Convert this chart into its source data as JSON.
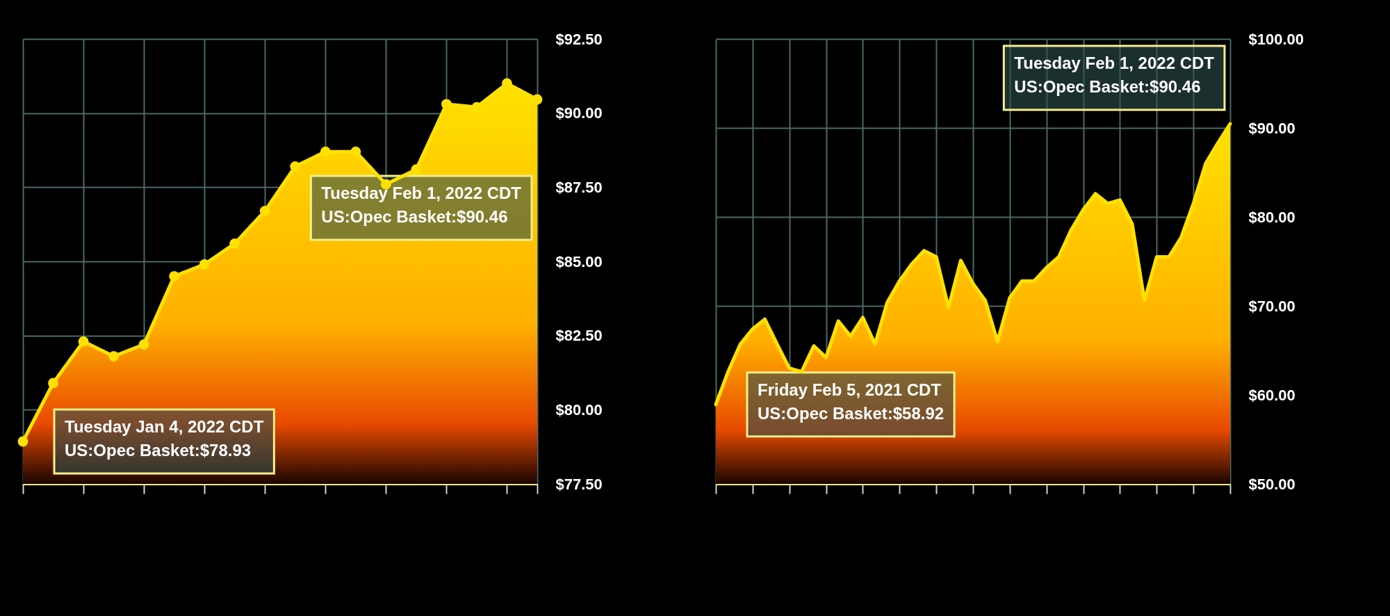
{
  "chart_data": [
    {
      "type": "area",
      "categories": [
        null,
        null,
        null,
        null,
        null,
        null,
        null,
        null,
        null,
        null,
        null,
        null,
        null,
        null,
        null,
        null,
        null,
        null
      ],
      "series": [
        {
          "color": "#ffe100",
          "values": [
            78.93,
            80.9,
            82.3,
            81.8,
            82.2,
            84.5,
            84.9,
            85.6,
            86.7,
            88.2,
            88.7,
            88.7,
            87.6,
            88.1,
            90.3,
            90.2,
            91.0,
            90.46
          ]
        }
      ],
      "ylim": [
        77.5,
        92.5
      ],
      "yticks": [
        {
          "value": 77.5,
          "label": "$77.50"
        },
        {
          "value": 80,
          "label": "$80.00"
        },
        {
          "value": 82.5,
          "label": "$82.50"
        },
        {
          "value": 85,
          "label": "$85.00"
        },
        {
          "value": 87.5,
          "label": "$87.50"
        },
        {
          "value": 90,
          "label": "$90.00"
        },
        {
          "value": 92.5,
          "label": "$92.50"
        }
      ],
      "tick_labels": "y",
      "grid": true,
      "marker": "circle",
      "annotations": [
        "Tuesday Jan 4, 2022 CDT\nUS:Opec Basket:$78.93",
        "Tuesday Feb 1, 2022 CDT\nUS:Opec Basket:$90.46"
      ]
    },
    {
      "type": "area",
      "categories": [
        null,
        null,
        null,
        null,
        null,
        null,
        null,
        null,
        null,
        null,
        null,
        null,
        null,
        null,
        null,
        null,
        null,
        null,
        null,
        null,
        null,
        null,
        null,
        null,
        null,
        null,
        null,
        null,
        null,
        null,
        null,
        null,
        null,
        null,
        null,
        null,
        null,
        null,
        null,
        null,
        null,
        null,
        null
      ],
      "series": [
        {
          "color": "#ffe100",
          "values": [
            58.92,
            62.6,
            65.7,
            67.4,
            68.5,
            65.7,
            63.0,
            62.6,
            65.5,
            64.2,
            68.3,
            66.6,
            68.7,
            65.7,
            70.4,
            72.8,
            74.7,
            76.2,
            75.5,
            69.8,
            75.1,
            72.5,
            70.6,
            66.0,
            70.9,
            72.8,
            72.8,
            74.3,
            75.5,
            78.5,
            80.8,
            82.6,
            81.5,
            81.9,
            79.2,
            70.6,
            75.5,
            75.5,
            77.7,
            81.5,
            86.0,
            88.3,
            90.46
          ]
        }
      ],
      "ylim": [
        50,
        100
      ],
      "yticks": [
        {
          "value": 50,
          "label": "$50.00"
        },
        {
          "value": 60,
          "label": "$60.00"
        },
        {
          "value": 70,
          "label": "$70.00"
        },
        {
          "value": 80,
          "label": "$80.00"
        },
        {
          "value": 90,
          "label": "$90.00"
        },
        {
          "value": 100,
          "label": "$100.00"
        }
      ],
      "tick_labels": "y",
      "grid": true,
      "marker": "none",
      "annotations": [
        "Friday Feb 5, 2021 CDT\nUS:Opec Basket:$58.92",
        "Tuesday Feb 1, 2022 CDT\nUS:Opec Basket:$90.46"
      ]
    }
  ]
}
